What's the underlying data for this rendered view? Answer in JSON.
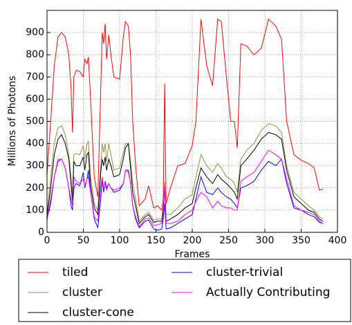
{
  "chart_data": {
    "type": "line",
    "x_label": "Frames",
    "y_label": "Millions of Photons",
    "xlim": [
      0,
      400
    ],
    "xticks": [
      0,
      50,
      100,
      150,
      200,
      250,
      300,
      350,
      400
    ],
    "ylim": [
      0,
      1000
    ],
    "yticks": [
      0,
      100,
      200,
      300,
      400,
      500,
      600,
      700,
      800,
      900
    ],
    "grid": true,
    "legend": "below",
    "x": [
      0,
      5,
      10,
      15,
      20,
      25,
      30,
      33,
      35,
      37,
      40,
      45,
      50,
      52,
      55,
      57,
      60,
      65,
      70,
      74,
      76,
      78,
      80,
      82,
      85,
      88,
      92,
      100,
      105,
      108,
      112,
      115,
      118,
      122,
      127,
      135,
      140,
      147,
      152,
      158,
      160,
      162,
      164,
      170,
      180,
      190,
      200,
      205,
      212,
      220,
      228,
      235,
      240,
      247,
      253,
      258,
      262,
      267,
      275,
      285,
      295,
      305,
      315,
      323,
      330,
      340,
      350,
      360,
      368,
      375,
      380
    ],
    "series": [
      {
        "name": "tiled",
        "color": "#ff0000",
        "values": [
          260,
          500,
          750,
          880,
          900,
          880,
          800,
          650,
          450,
          700,
          730,
          725,
          700,
          780,
          760,
          790,
          600,
          250,
          160,
          650,
          900,
          850,
          940,
          780,
          890,
          800,
          700,
          690,
          880,
          950,
          930,
          800,
          500,
          300,
          120,
          150,
          210,
          110,
          120,
          100,
          150,
          670,
          130,
          200,
          300,
          310,
          390,
          500,
          960,
          750,
          660,
          960,
          950,
          700,
          500,
          500,
          380,
          850,
          840,
          800,
          830,
          960,
          930,
          870,
          500,
          350,
          325,
          310,
          290,
          190,
          195
        ]
      },
      {
        "name": "cluster",
        "color": "#8f8f3f",
        "values": [
          80,
          250,
          400,
          470,
          480,
          440,
          350,
          250,
          160,
          350,
          355,
          350,
          390,
          330,
          400,
          410,
          250,
          130,
          100,
          300,
          400,
          360,
          400,
          320,
          400,
          350,
          280,
          290,
          360,
          400,
          400,
          320,
          220,
          150,
          50,
          80,
          90,
          55,
          60,
          60,
          120,
          230,
          80,
          80,
          110,
          150,
          170,
          250,
          350,
          300,
          270,
          310,
          290,
          250,
          240,
          220,
          180,
          330,
          370,
          400,
          460,
          490,
          480,
          450,
          300,
          180,
          150,
          120,
          100,
          70,
          60
        ]
      },
      {
        "name": "cluster-cone",
        "color": "#000000",
        "values": [
          70,
          200,
          350,
          420,
          440,
          400,
          330,
          220,
          140,
          320,
          300,
          300,
          340,
          280,
          350,
          360,
          210,
          110,
          80,
          270,
          330,
          300,
          340,
          280,
          330,
          300,
          250,
          260,
          330,
          380,
          400,
          290,
          180,
          120,
          40,
          70,
          80,
          45,
          50,
          50,
          100,
          200,
          50,
          60,
          80,
          110,
          130,
          200,
          290,
          250,
          220,
          260,
          240,
          220,
          200,
          180,
          150,
          300,
          330,
          370,
          420,
          450,
          440,
          420,
          280,
          160,
          130,
          100,
          90,
          60,
          50
        ]
      },
      {
        "name": "cluster-trivial",
        "color": "#0000ff",
        "values": [
          60,
          130,
          250,
          320,
          330,
          290,
          200,
          120,
          100,
          200,
          220,
          210,
          270,
          200,
          240,
          280,
          180,
          60,
          20,
          150,
          240,
          180,
          230,
          200,
          220,
          200,
          180,
          190,
          220,
          280,
          280,
          220,
          120,
          60,
          20,
          50,
          55,
          15,
          10,
          15,
          60,
          130,
          15,
          20,
          40,
          60,
          80,
          150,
          250,
          180,
          170,
          200,
          180,
          160,
          150,
          130,
          110,
          200,
          210,
          230,
          280,
          320,
          300,
          330,
          220,
          110,
          100,
          80,
          70,
          45,
          40
        ]
      },
      {
        "name": "Actually Contributing",
        "color": "#ff00ff",
        "values": [
          55,
          150,
          250,
          330,
          330,
          290,
          200,
          150,
          120,
          250,
          230,
          220,
          240,
          210,
          240,
          250,
          180,
          70,
          50,
          200,
          250,
          200,
          220,
          190,
          220,
          200,
          190,
          200,
          220,
          280,
          270,
          220,
          120,
          70,
          25,
          60,
          65,
          30,
          35,
          40,
          80,
          210,
          40,
          40,
          50,
          80,
          100,
          140,
          180,
          160,
          110,
          140,
          120,
          110,
          110,
          100,
          100,
          230,
          250,
          270,
          320,
          370,
          350,
          330,
          240,
          120,
          100,
          90,
          80,
          50,
          40
        ]
      }
    ]
  }
}
